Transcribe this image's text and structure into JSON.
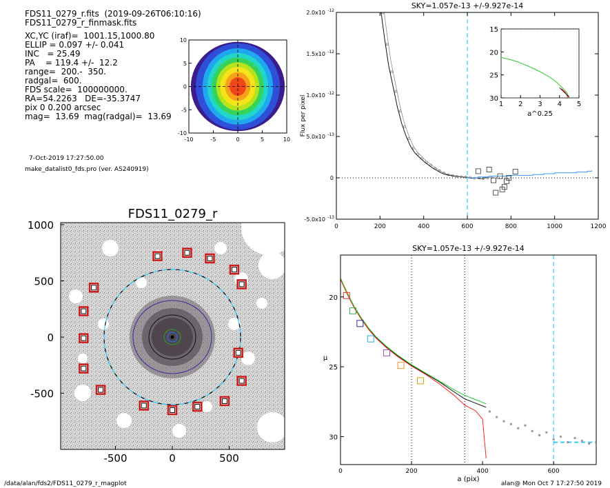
{
  "info": {
    "lines": [
      "FDS11_0279_r.fits  (2019-09-26T06:10:16)",
      "FDS11_0279_r_finmask.fits",
      "",
      "XC,YC (iraf)=  1001.15,1000.80",
      "ELLIP = 0.097 +/- 0.041",
      "INC   = 25.49",
      "PA    = 119.4 +/-  12.2",
      "range=  200.-  350.",
      "radgal=  600.",
      "FDS scale=  100000000.",
      "RA=54.2263   DE=-35.3747",
      "pix 0 0.200 arcsec",
      "mag=  13.69  mag(radgal)=  13.69"
    ],
    "date": "7-Oct-2019 17:27:50.00",
    "program": "make_datalist0_fds.pro (ver. AS240919)"
  },
  "footer": {
    "left": "/data/alan/fds2/FDS11_0279_r_magplot",
    "right": "alan@  Mon Oct  7 17:27:50 2019"
  },
  "colors": {
    "contour": [
      "#3b1c8c",
      "#2f4fd8",
      "#1fa8f0",
      "#22d6c8",
      "#35d35a",
      "#b7e31e",
      "#f5e41a",
      "#f7a21b",
      "#f2461a"
    ],
    "sky_line": "#33ccff",
    "profile_black": "#111111",
    "profile_red": "#ff2020",
    "profile_green": "#22cc22",
    "profile_blue": "#3399ff",
    "marker_red": "#cc1a1a"
  },
  "chart_data": [
    {
      "id": "contour",
      "type": "heatmap",
      "title": "",
      "xlim": [
        -10,
        10
      ],
      "ylim": [
        -10,
        10
      ],
      "xticks": [
        -10,
        -5,
        0,
        5,
        10
      ],
      "yticks": [
        -10,
        -5,
        0,
        5,
        10
      ],
      "levels": [
        {
          "a": 9.6,
          "b": 9.6
        },
        {
          "a": 8.6,
          "b": 9.3
        },
        {
          "a": 7.2,
          "b": 8.2
        },
        {
          "a": 6.2,
          "b": 7.2
        },
        {
          "a": 5.3,
          "b": 6.2
        },
        {
          "a": 4.4,
          "b": 5.2
        },
        {
          "a": 3.6,
          "b": 4.2
        },
        {
          "a": 2.6,
          "b": 3.1
        },
        {
          "a": 1.7,
          "b": 2.0
        }
      ]
    },
    {
      "id": "sky",
      "type": "scatter",
      "title": "SKY=1.057e-13 +/-9.927e-14",
      "xlabel": "",
      "ylabel": "Flux per pixel",
      "xlim": [
        0,
        1200
      ],
      "ylim": [
        -5e-13,
        2e-12
      ],
      "xticks": [
        0,
        200,
        400,
        600,
        800,
        1000,
        1200
      ],
      "yticks": [
        {
          "v": 2e-12,
          "label": "2.0x10",
          "exp": "-12"
        },
        {
          "v": 1.5e-12,
          "label": "1.5x10",
          "exp": "-12"
        },
        {
          "v": 1e-12,
          "label": "1.0x10",
          "exp": "-12"
        },
        {
          "v": 5e-13,
          "label": "5.0x10",
          "exp": "-13"
        },
        {
          "v": 0,
          "label": "0",
          "exp": ""
        },
        {
          "v": -5e-13,
          "label": "-5.0x10",
          "exp": "-13"
        }
      ],
      "vline_x": 600,
      "series": [
        {
          "x": [
            200,
            220,
            240,
            260,
            280,
            300,
            320,
            340,
            360,
            380,
            400,
            420,
            440,
            460,
            480,
            500,
            520,
            540,
            560,
            580,
            600,
            620,
            640,
            660,
            680,
            700
          ],
          "values": [
            2.1e-12,
            1.7e-12,
            1.35e-12,
            1.1e-12,
            8.5e-13,
            6.5e-13,
            5e-13,
            3.8e-13,
            3e-13,
            2.5e-13,
            2e-13,
            1.6e-13,
            1.2e-13,
            9e-14,
            6e-14,
            4e-14,
            3e-14,
            2e-14,
            1.5e-14,
            1e-14,
            5e-15,
            -5e-15,
            0.0,
            -1e-14,
            0.0,
            5e-15
          ]
        },
        {
          "x": [
            600,
            650,
            700,
            750,
            800,
            850,
            900,
            950,
            1000,
            1050,
            1100,
            1150,
            1170
          ],
          "values": [
            0.0,
            1e-14,
            2e-14,
            2e-14,
            3e-14,
            3e-14,
            4e-14,
            5e-14,
            6e-14,
            6e-14,
            7e-14,
            8e-14,
            9e-14
          ]
        }
      ],
      "squares": [
        {
          "x": 650,
          "y": 8e-14
        },
        {
          "x": 700,
          "y": 1e-13
        },
        {
          "x": 720,
          "y": -3e-14
        },
        {
          "x": 730,
          "y": -1.8e-13
        },
        {
          "x": 750,
          "y": 2e-14
        },
        {
          "x": 760,
          "y": -1.4e-13
        },
        {
          "x": 770,
          "y": -1.1e-13
        },
        {
          "x": 780,
          "y": -4e-14
        },
        {
          "x": 790,
          "y": 0.0
        },
        {
          "x": 820,
          "y": 7.5e-14
        }
      ],
      "inset": {
        "xlabel": "a^0.25",
        "xlim": [
          1,
          5
        ],
        "ylim": [
          30,
          15
        ],
        "xticks": [
          1,
          2,
          3,
          4,
          5
        ],
        "yticks": [
          15,
          20,
          25,
          30
        ],
        "x": [
          1.0,
          1.5,
          2.0,
          2.5,
          3.0,
          3.5,
          3.8,
          4.0,
          4.2,
          4.4,
          4.5
        ],
        "values": [
          21.2,
          21.7,
          22.4,
          23.3,
          24.3,
          25.5,
          26.4,
          27.2,
          28.0,
          29.0,
          30.0
        ]
      }
    },
    {
      "id": "image",
      "type": "scatter",
      "title": "FDS11_0279_r",
      "xlim": [
        -1000,
        1000
      ],
      "ylim": [
        -1000,
        1000
      ],
      "xticks": [
        -500,
        0,
        500
      ],
      "yticks": [
        -500,
        0,
        500,
        1000
      ],
      "ring_radius": 600,
      "markers": [
        {
          "x": -130,
          "y": 720
        },
        {
          "x": 130,
          "y": 750
        },
        {
          "x": 330,
          "y": 700
        },
        {
          "x": 545,
          "y": 600
        },
        {
          "x": 610,
          "y": 470
        },
        {
          "x": -690,
          "y": 440
        },
        {
          "x": -780,
          "y": 230
        },
        {
          "x": -780,
          "y": -10
        },
        {
          "x": -780,
          "y": -280
        },
        {
          "x": -630,
          "y": -470
        },
        {
          "x": 580,
          "y": -140
        },
        {
          "x": 610,
          "y": -390
        },
        {
          "x": 460,
          "y": -570
        },
        {
          "x": 220,
          "y": -620
        },
        {
          "x": 0,
          "y": -650
        },
        {
          "x": -250,
          "y": -610
        }
      ]
    },
    {
      "id": "profile",
      "type": "line",
      "title": "SKY=1.057e-13 +/-9.927e-14",
      "xlabel": "a (pix)",
      "ylabel": "μ",
      "xlim": [
        0,
        720
      ],
      "ylim": [
        32,
        17
      ],
      "xticks": [
        0,
        200,
        400,
        600
      ],
      "yticks": [
        20,
        25,
        30
      ],
      "vlines": [
        200,
        350
      ],
      "sky_vline": 600,
      "sky_level": 30.4,
      "x": [
        0,
        20,
        40,
        60,
        80,
        100,
        130,
        160,
        200,
        240,
        280,
        320,
        350,
        380,
        400,
        410
      ],
      "series": [
        {
          "name": "",
          "values": [
            18.7,
            19.8,
            20.8,
            21.6,
            22.3,
            22.9,
            23.6,
            24.2,
            24.9,
            25.5,
            26.1,
            26.8,
            27.3,
            27.6,
            27.8,
            27.9
          ]
        },
        {
          "name": "",
          "values": [
            18.7,
            19.8,
            20.8,
            21.6,
            22.3,
            22.9,
            23.6,
            24.2,
            24.9,
            25.5,
            26.2,
            27.0,
            27.7,
            28.1,
            28.7,
            31.5
          ]
        },
        {
          "name": "",
          "values": [
            18.7,
            19.8,
            20.8,
            21.6,
            22.3,
            22.9,
            23.6,
            24.2,
            24.9,
            25.5,
            26.1,
            26.7,
            27.1,
            27.4,
            27.6,
            27.7
          ]
        }
      ],
      "markers": [
        {
          "x": 17,
          "y": 19.9
        },
        {
          "x": 35,
          "y": 21.0
        },
        {
          "x": 55,
          "y": 21.9
        },
        {
          "x": 85,
          "y": 23.0
        },
        {
          "x": 130,
          "y": 24.0
        },
        {
          "x": 170,
          "y": 24.9
        },
        {
          "x": 225,
          "y": 26.0
        }
      ],
      "grey_points": {
        "x": [
          420,
          440,
          460,
          480,
          500,
          520,
          540,
          560,
          580,
          600,
          620,
          640,
          660,
          680,
          700
        ],
        "values": [
          28.2,
          28.6,
          28.9,
          29.1,
          29.4,
          29.2,
          29.6,
          29.9,
          29.7,
          30.2,
          30.0,
          30.4,
          30.1,
          30.3,
          30.5
        ]
      }
    }
  ]
}
